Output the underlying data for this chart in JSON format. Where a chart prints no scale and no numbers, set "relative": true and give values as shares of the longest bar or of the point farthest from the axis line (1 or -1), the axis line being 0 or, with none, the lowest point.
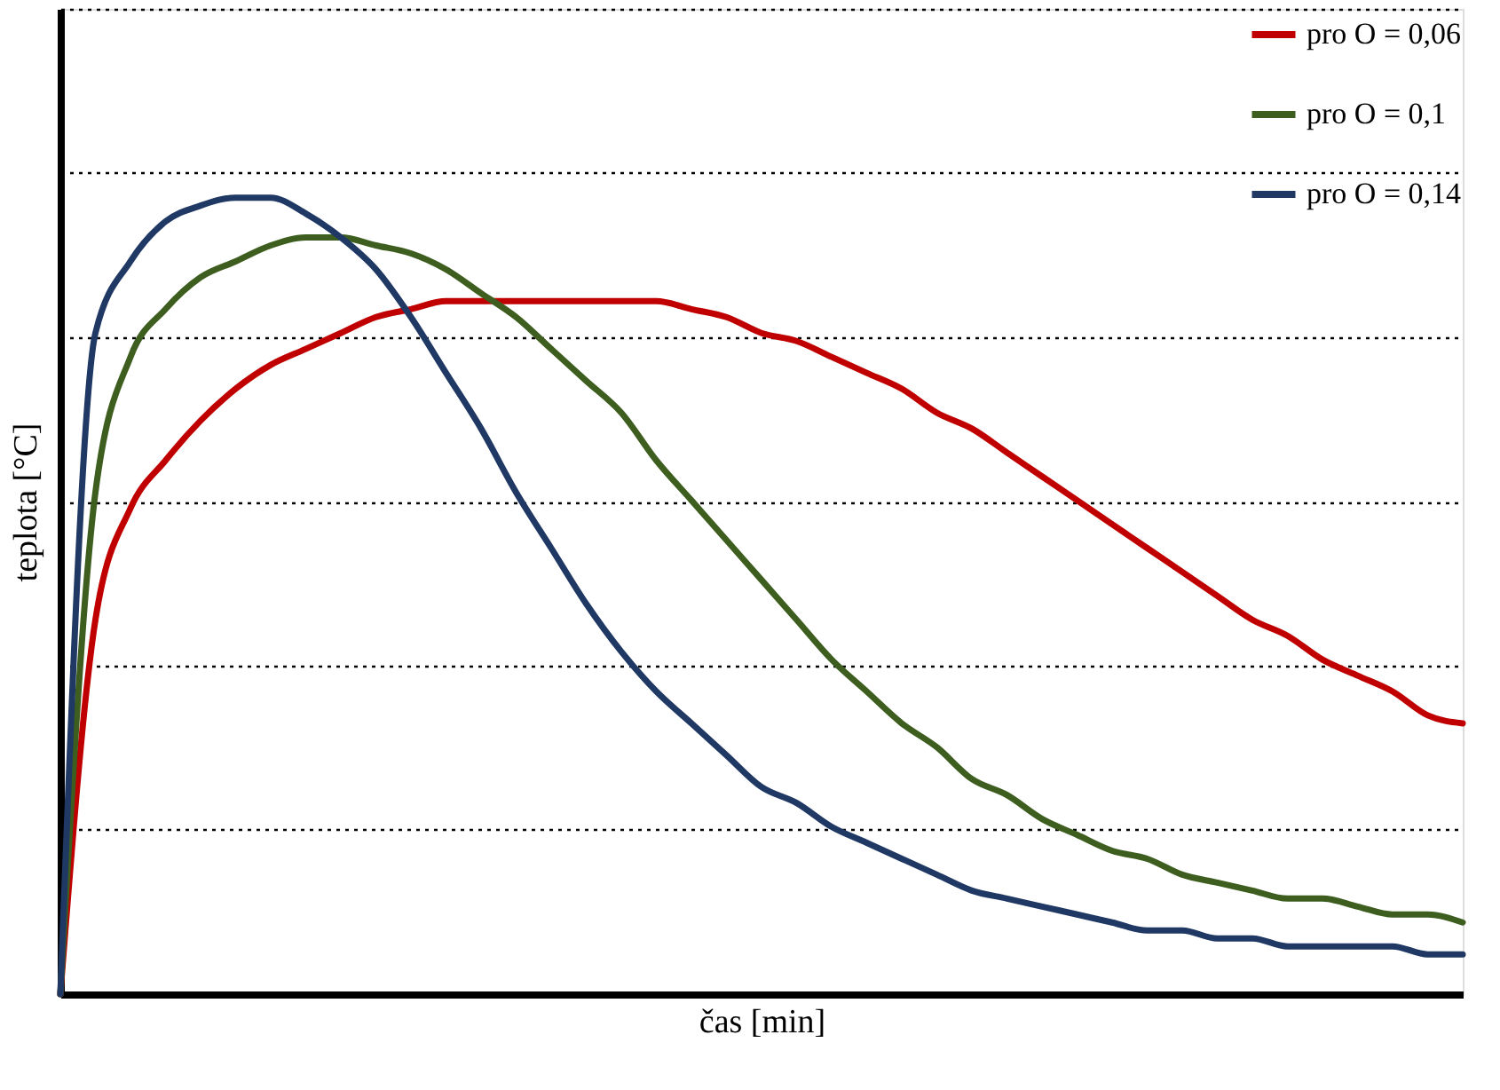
{
  "chart_data": {
    "type": "line",
    "relative": true,
    "xlabel": "čas [min]",
    "ylabel": "teplota [°C]",
    "grid": "y",
    "legend": "top right",
    "line_style": "solid",
    "marker": "none",
    "categories": [
      null,
      null,
      null,
      null,
      null,
      null,
      null,
      null,
      null,
      null,
      null,
      null,
      null,
      null,
      null,
      null,
      null,
      null,
      null,
      null,
      null,
      null,
      null,
      null,
      null,
      null,
      null,
      null,
      null,
      null,
      null,
      null,
      null,
      null,
      null,
      null,
      null,
      null,
      null,
      null,
      null
    ],
    "series": [
      {
        "name": "pro O = 0,06",
        "color": "#c00000",
        "values": [
          0,
          0.47,
          0.61,
          0.67,
          0.72,
          0.76,
          0.79,
          0.81,
          0.83,
          0.85,
          0.86,
          0.87,
          0.87,
          0.87,
          0.87,
          0.87,
          0.87,
          0.87,
          0.86,
          0.85,
          0.83,
          0.82,
          0.8,
          0.78,
          0.76,
          0.73,
          0.71,
          0.68,
          0.65,
          0.62,
          0.59,
          0.56,
          0.53,
          0.5,
          0.47,
          0.45,
          0.42,
          0.4,
          0.38,
          0.35,
          0.34
        ]
      },
      {
        "name": "pro O = 0,1",
        "color": "#3d5e1f",
        "values": [
          0,
          0.63,
          0.8,
          0.86,
          0.9,
          0.92,
          0.94,
          0.95,
          0.95,
          0.94,
          0.93,
          0.91,
          0.88,
          0.85,
          0.81,
          0.77,
          0.73,
          0.67,
          0.62,
          0.57,
          0.52,
          0.47,
          0.42,
          0.38,
          0.34,
          0.31,
          0.27,
          0.25,
          0.22,
          0.2,
          0.18,
          0.17,
          0.15,
          0.14,
          0.13,
          0.12,
          0.12,
          0.11,
          0.1,
          0.1,
          0.09
        ]
      },
      {
        "name": "pro O = 0,14",
        "color": "#1f3864",
        "values": [
          0,
          0.83,
          0.92,
          0.97,
          0.99,
          1.0,
          1.0,
          0.98,
          0.95,
          0.91,
          0.85,
          0.78,
          0.71,
          0.63,
          0.56,
          0.49,
          0.43,
          0.38,
          0.34,
          0.3,
          0.26,
          0.24,
          0.21,
          0.19,
          0.17,
          0.15,
          0.13,
          0.12,
          0.11,
          0.1,
          0.09,
          0.08,
          0.08,
          0.07,
          0.07,
          0.06,
          0.06,
          0.06,
          0.06,
          0.05,
          0.05
        ]
      }
    ]
  }
}
